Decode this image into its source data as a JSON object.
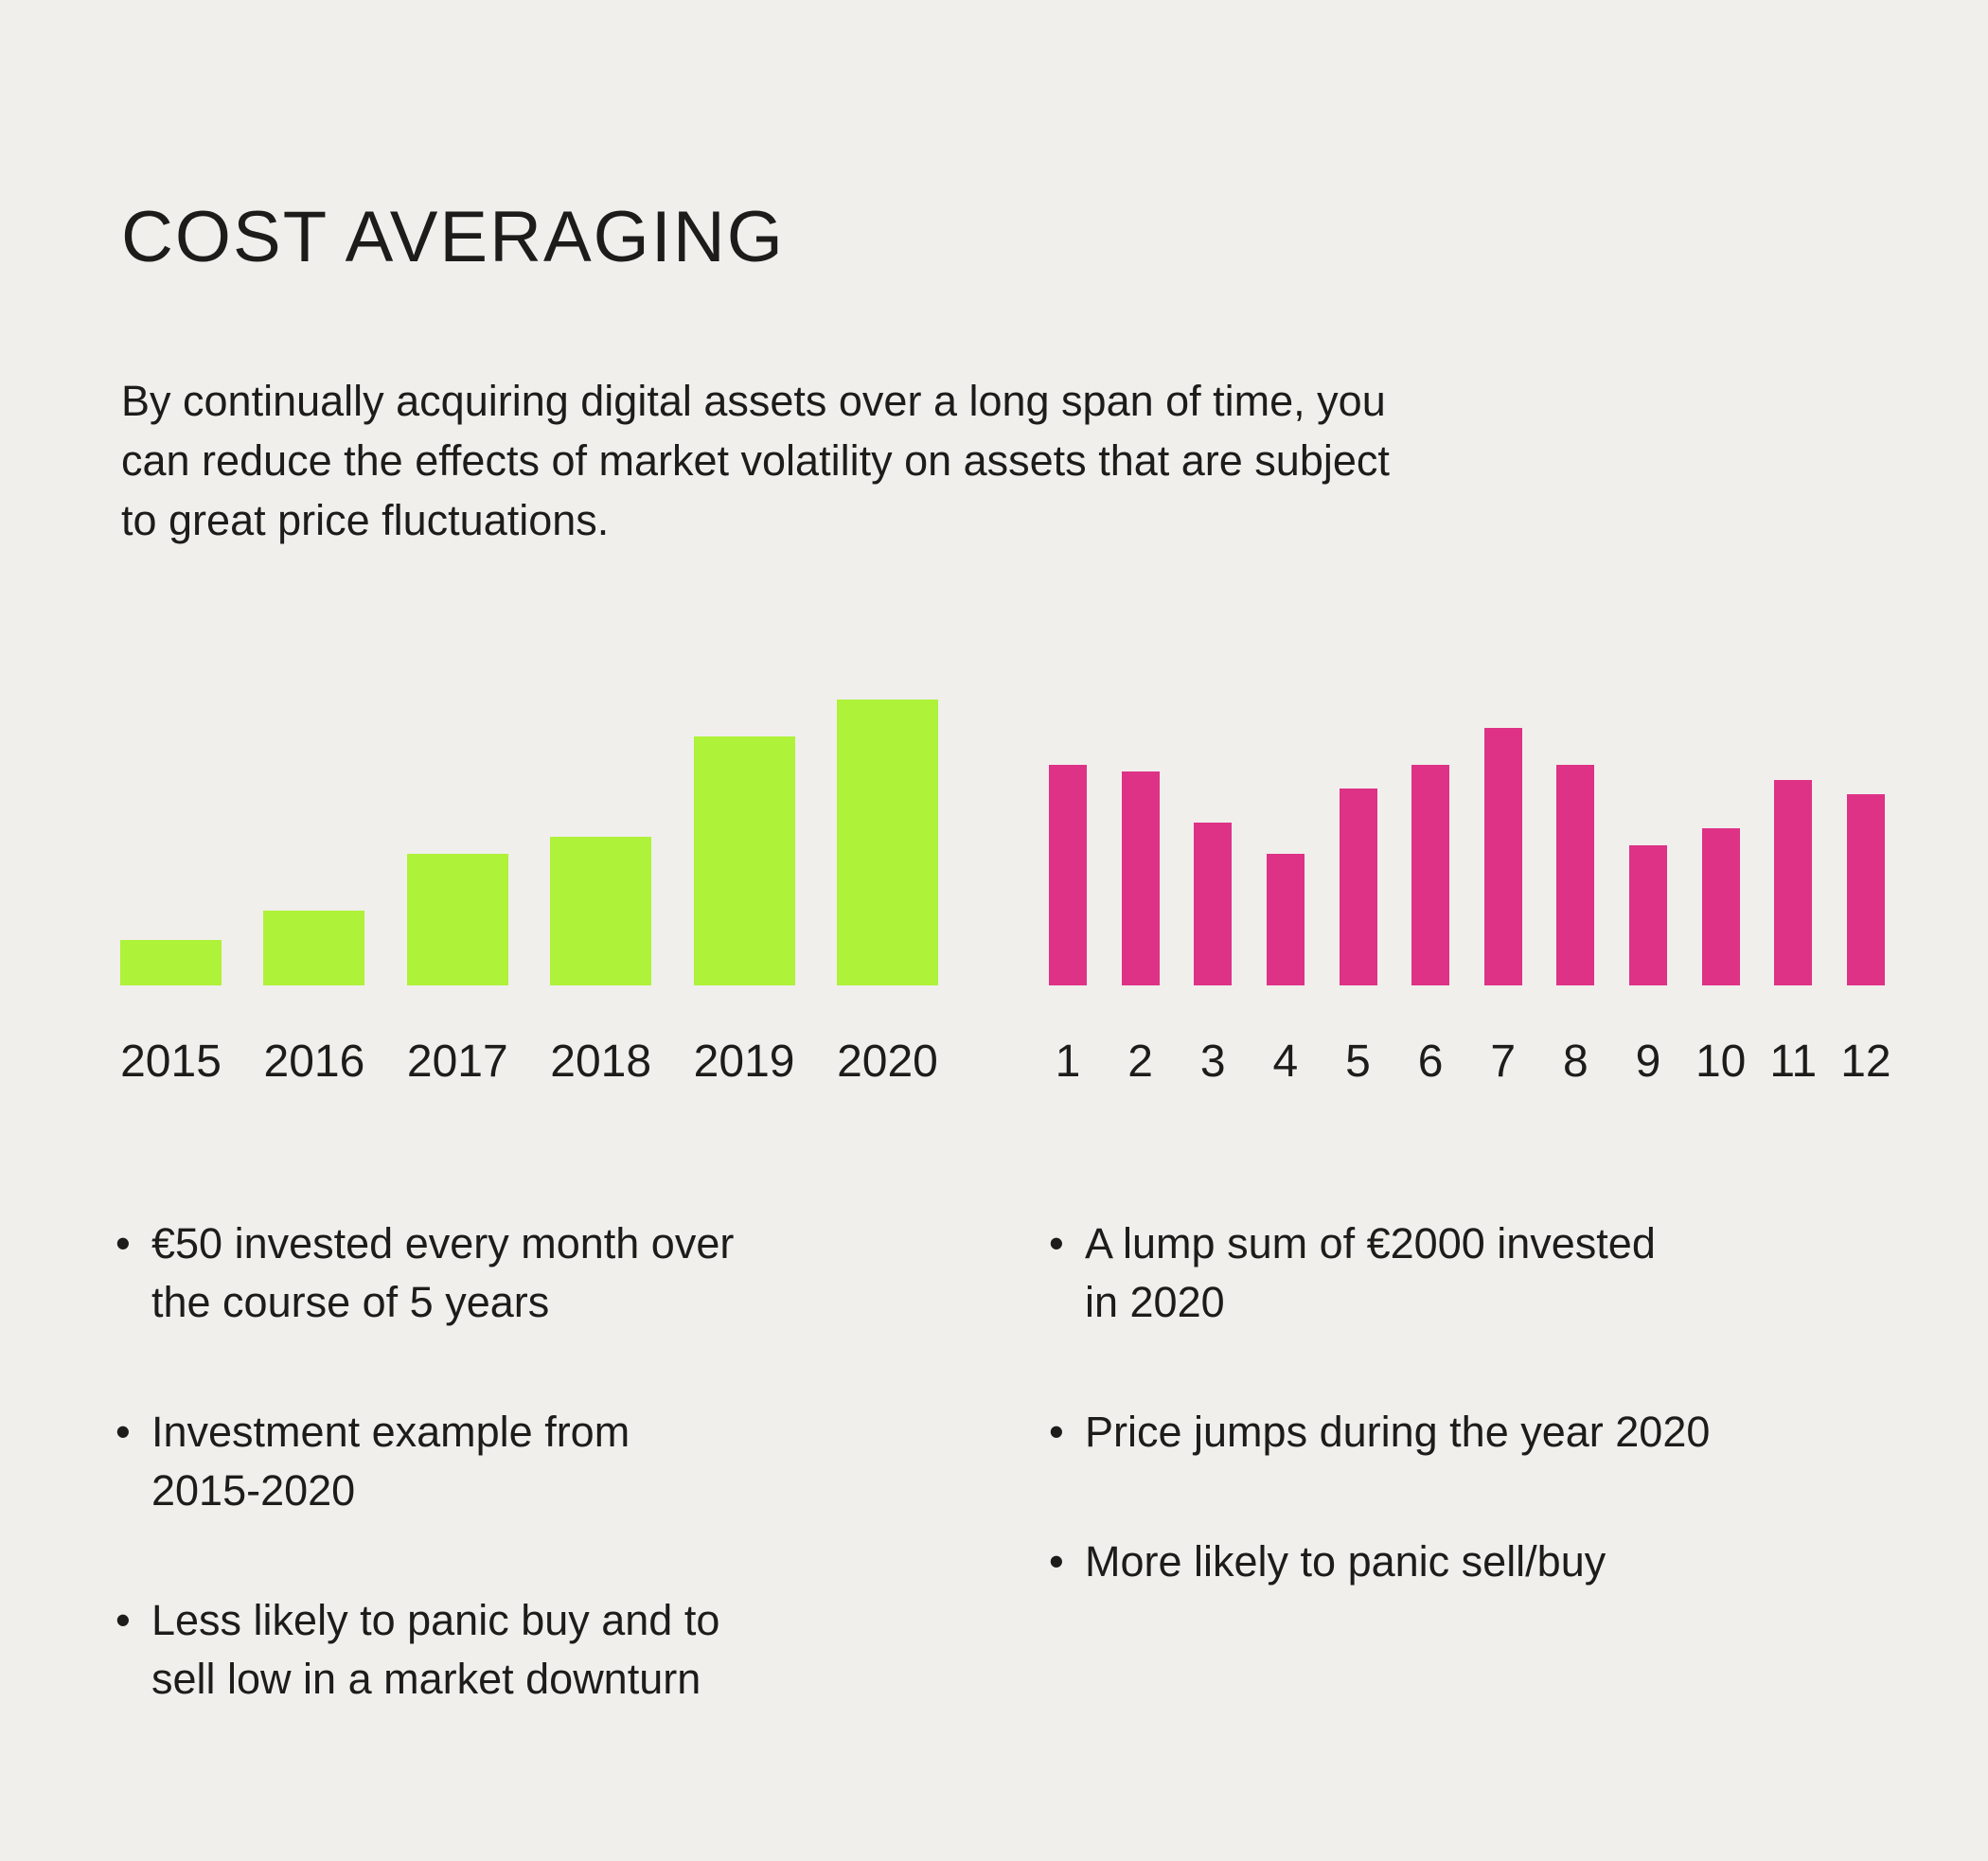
{
  "title": "COST AVERAGING",
  "intro": {
    "lines": [
      "By continually acquiring digital assets over a long span of time, you",
      "can reduce the effects of market volatility on assets that are subject",
      "to great price fluctuations."
    ]
  },
  "colors": {
    "background": "#f0efec",
    "text": "#1d1c1a",
    "green_bars": "#aef239",
    "pink_bars": "#de3286"
  },
  "chart_data": [
    {
      "type": "bar",
      "name": "recurring-investment-by-year",
      "categories": [
        "2015",
        "2016",
        "2017",
        "2018",
        "2019",
        "2020"
      ],
      "values": [
        16,
        26,
        46,
        52,
        87,
        100
      ],
      "value_units": "estimated percent of tallest bar (no y-axis shown)",
      "bar_color": "#aef239",
      "xlabel": "",
      "ylabel": "",
      "grid": false,
      "legend": "none",
      "axis_values_shown": false
    },
    {
      "type": "bar",
      "name": "lump-sum-price-by-month",
      "categories": [
        "1",
        "2",
        "3",
        "4",
        "5",
        "6",
        "7",
        "8",
        "9",
        "10",
        "11",
        "12"
      ],
      "values": [
        77,
        75,
        57,
        46,
        69,
        77,
        90,
        77,
        49,
        55,
        72,
        67
      ],
      "value_units": "estimated percent of tallest bar (no y-axis shown)",
      "bar_color": "#de3286",
      "xlabel": "",
      "ylabel": "",
      "grid": false,
      "legend": "none",
      "axis_values_shown": false
    }
  ],
  "bullet_marker": "•",
  "bullets": {
    "left": [
      {
        "lines": [
          "€50 invested every month over",
          "the course of 5 years"
        ]
      },
      {
        "lines": [
          "Investment example from",
          "2015-2020"
        ]
      },
      {
        "lines": [
          "Less likely to panic buy and to",
          "sell low in a market downturn"
        ]
      }
    ],
    "right": [
      {
        "lines": [
          "A lump sum of €2000 invested",
          "in 2020"
        ]
      },
      {
        "lines": [
          "Price jumps during the year 2020"
        ]
      },
      {
        "lines": [
          "More likely to panic sell/buy"
        ]
      }
    ]
  }
}
